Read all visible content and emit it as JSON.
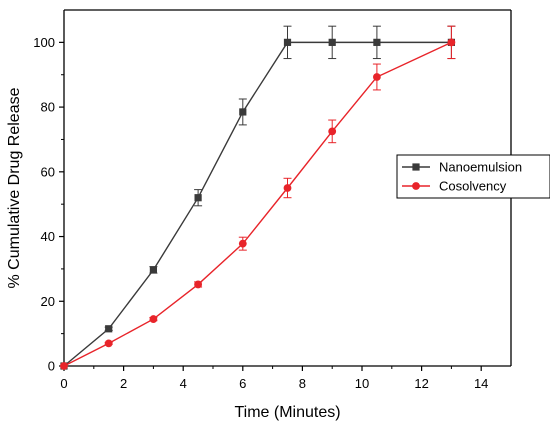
{
  "chart_data": {
    "type": "line",
    "title": "",
    "xlabel": "Time (Minutes)",
    "ylabel": "% Cumulative Drug Release",
    "xlim": [
      0,
      15
    ],
    "ylim": [
      0,
      110
    ],
    "xticks": [
      0,
      2,
      4,
      6,
      8,
      10,
      12,
      14
    ],
    "yticks": [
      0,
      20,
      40,
      60,
      80,
      100
    ],
    "grid": false,
    "legend_position": "right",
    "series": [
      {
        "name": "Nanoemulsion",
        "color": "#3a3a3a",
        "marker": "square",
        "x": [
          0,
          1.5,
          3,
          4.5,
          6,
          7.5,
          9,
          10.5,
          13
        ],
        "y": [
          0,
          11.5,
          29.7,
          52,
          78.5,
          100,
          100,
          100,
          100
        ],
        "error": [
          0,
          0.5,
          1.0,
          2.5,
          4.0,
          5.0,
          5.0,
          5.0,
          5.0
        ]
      },
      {
        "name": "Cosolvency",
        "color": "#e8242a",
        "marker": "circle",
        "x": [
          0,
          1.5,
          3,
          4.5,
          6,
          7.5,
          9,
          10.5,
          13
        ],
        "y": [
          0,
          7,
          14.5,
          25.2,
          37.8,
          55,
          72.5,
          89.3,
          100
        ],
        "error": [
          0,
          0.3,
          0.5,
          0.8,
          2.0,
          3.0,
          3.5,
          4.0,
          5.0
        ]
      }
    ]
  }
}
